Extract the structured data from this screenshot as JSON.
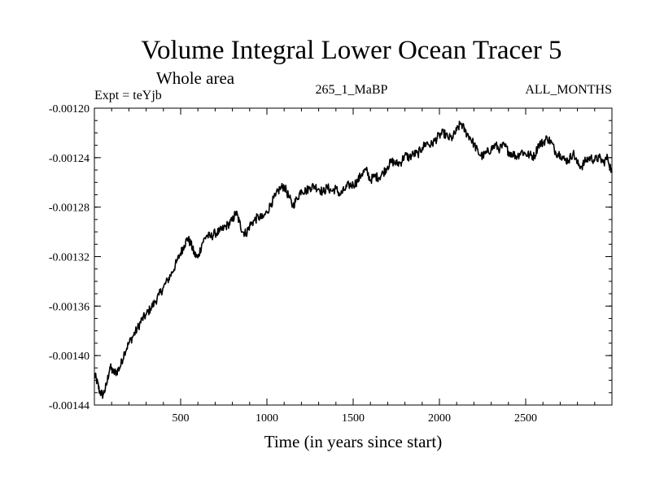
{
  "chart_data": {
    "type": "line",
    "title": "Volume Integral Lower Ocean Tracer 5",
    "subtitle": "Whole area",
    "expt_label": "Expt = teYjb",
    "run_label": "265_1_MaBP",
    "months_label": "ALL_MONTHS",
    "xlabel": "Time (in years since start)",
    "ylabel": "",
    "xlim": [
      0,
      3000
    ],
    "ylim": [
      -0.00144,
      -0.0012
    ],
    "x_ticks": [
      {
        "value": 500,
        "label": "500"
      },
      {
        "value": 1000,
        "label": "1000"
      },
      {
        "value": 1500,
        "label": "1500"
      },
      {
        "value": 2000,
        "label": "2000"
      },
      {
        "value": 2500,
        "label": "2500"
      }
    ],
    "y_ticks": [
      {
        "value": -0.0012,
        "label": "-0.00120"
      },
      {
        "value": -0.00124,
        "label": "-0.00124"
      },
      {
        "value": -0.00128,
        "label": "-0.00128"
      },
      {
        "value": -0.00132,
        "label": "-0.00132"
      },
      {
        "value": -0.00136,
        "label": "-0.00136"
      },
      {
        "value": -0.0014,
        "label": "-0.00140"
      },
      {
        "value": -0.00144,
        "label": "-0.00144"
      }
    ],
    "series": [
      {
        "name": "Volume Integral Lower Ocean Tracer 5",
        "color": "#000000",
        "x": [
          0,
          15,
          30,
          50,
          70,
          90,
          110,
          130,
          150,
          175,
          200,
          225,
          250,
          275,
          300,
          325,
          350,
          375,
          400,
          425,
          450,
          475,
          500,
          520,
          540,
          560,
          580,
          600,
          625,
          650,
          675,
          700,
          725,
          750,
          775,
          800,
          820,
          840,
          860,
          880,
          900,
          925,
          950,
          975,
          1000,
          1025,
          1050,
          1075,
          1100,
          1125,
          1150,
          1175,
          1200,
          1225,
          1250,
          1275,
          1300,
          1325,
          1350,
          1375,
          1400,
          1425,
          1450,
          1475,
          1500,
          1525,
          1550,
          1575,
          1600,
          1625,
          1650,
          1675,
          1700,
          1725,
          1750,
          1775,
          1800,
          1825,
          1850,
          1875,
          1900,
          1925,
          1950,
          1975,
          2000,
          2025,
          2050,
          2075,
          2100,
          2125,
          2150,
          2175,
          2200,
          2225,
          2250,
          2275,
          2300,
          2325,
          2350,
          2375,
          2400,
          2425,
          2450,
          2475,
          2500,
          2525,
          2550,
          2575,
          2600,
          2625,
          2650,
          2675,
          2700,
          2725,
          2750,
          2775,
          2800,
          2825,
          2850,
          2875,
          2900,
          2925,
          2950,
          2975,
          3000
        ],
        "y": [
          -0.001415,
          -0.001421,
          -0.001429,
          -0.001432,
          -0.001424,
          -0.001409,
          -0.001414,
          -0.001413,
          -0.001409,
          -0.001397,
          -0.00139,
          -0.001384,
          -0.001378,
          -0.001371,
          -0.001367,
          -0.001362,
          -0.001357,
          -0.001351,
          -0.001345,
          -0.001339,
          -0.001333,
          -0.001325,
          -0.001317,
          -0.001311,
          -0.001305,
          -0.00131,
          -0.001318,
          -0.001321,
          -0.001309,
          -0.001303,
          -0.001304,
          -0.001301,
          -0.0013,
          -0.001297,
          -0.001294,
          -0.001291,
          -0.001284,
          -0.001292,
          -0.0013,
          -0.001301,
          -0.001295,
          -0.001291,
          -0.001288,
          -0.001289,
          -0.001284,
          -0.001277,
          -0.001271,
          -0.001265,
          -0.001263,
          -0.001271,
          -0.001279,
          -0.001273,
          -0.001266,
          -0.001267,
          -0.001264,
          -0.001263,
          -0.001265,
          -0.001268,
          -0.001264,
          -0.001267,
          -0.001265,
          -0.00127,
          -0.001266,
          -0.001262,
          -0.001262,
          -0.001259,
          -0.001253,
          -0.00125,
          -0.001258,
          -0.001255,
          -0.001256,
          -0.001252,
          -0.001247,
          -0.001243,
          -0.001245,
          -0.001244,
          -0.001238,
          -0.00124,
          -0.001237,
          -0.001237,
          -0.001232,
          -0.001228,
          -0.00123,
          -0.001226,
          -0.001222,
          -0.00122,
          -0.001224,
          -0.001224,
          -0.001218,
          -0.001212,
          -0.001219,
          -0.001223,
          -0.001229,
          -0.001236,
          -0.001239,
          -0.001236,
          -0.001233,
          -0.00123,
          -0.001233,
          -0.00123,
          -0.001235,
          -0.001237,
          -0.001239,
          -0.001235,
          -0.001237,
          -0.001238,
          -0.001239,
          -0.001229,
          -0.001228,
          -0.001224,
          -0.001228,
          -0.001236,
          -0.001237,
          -0.001242,
          -0.001242,
          -0.001236,
          -0.001245,
          -0.001247,
          -0.001242,
          -0.00124,
          -0.001242,
          -0.00124,
          -0.001244,
          -0.00124,
          -0.001252
        ]
      }
    ]
  }
}
